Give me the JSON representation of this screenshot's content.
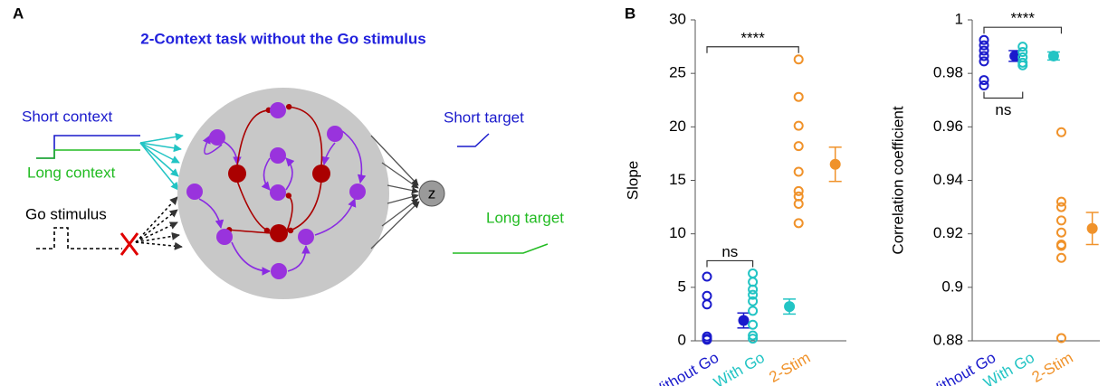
{
  "panels": [
    "A",
    "B"
  ],
  "diagram": {
    "title": "2-Context task without the Go stimulus",
    "inputs": [
      "Short context",
      "Long context",
      "Go stimulus"
    ],
    "output": "z",
    "targets": [
      "Short target",
      "Long target"
    ]
  },
  "chart_data": [
    {
      "type": "strip",
      "ylabel": "Slope",
      "categories": [
        "Without Go",
        "With Go",
        "2-Stim"
      ],
      "colors": [
        "#1a1acc",
        "#22c4c4",
        "#f0922a"
      ],
      "points": [
        [
          6,
          4.2,
          3.4,
          0.4,
          0.2,
          0.1
        ],
        [
          6.3,
          5.5,
          4.8,
          4.3,
          3.7,
          2.8,
          1.5,
          0.5,
          0.2
        ],
        [
          26.3,
          22.8,
          20.1,
          18.2,
          15.8,
          14,
          13.5,
          12.8,
          11
        ]
      ],
      "means": [
        1.9,
        3.2,
        16.5
      ],
      "errors": [
        0.7,
        0.7,
        1.6
      ],
      "ylim": [
        0,
        30
      ],
      "yticks": [
        0,
        5,
        10,
        15,
        20,
        25,
        30
      ],
      "annotations": [
        {
          "text": "ns",
          "groups": [
            0,
            1
          ],
          "side": "above"
        },
        {
          "text": "****",
          "groups": [
            0,
            2
          ],
          "side": "above"
        }
      ]
    },
    {
      "type": "strip",
      "ylabel": "Correlation coefficient",
      "categories": [
        "Without Go",
        "With Go",
        "2-Stim"
      ],
      "colors": [
        "#1a1acc",
        "#22c4c4",
        "#f0922a"
      ],
      "points": [
        [
          0.9925,
          0.9905,
          0.9885,
          0.9865,
          0.9845,
          0.9775,
          0.9755
        ],
        [
          0.99,
          0.988,
          0.986,
          0.984,
          0.983
        ],
        [
          0.958,
          0.932,
          0.93,
          0.925,
          0.9205,
          0.916,
          0.9155,
          0.911,
          0.881
        ]
      ],
      "means": [
        0.9865,
        0.9865,
        0.922
      ],
      "errors": [
        0.002,
        0.0015,
        0.006
      ],
      "ylim": [
        0.88,
        1
      ],
      "yticks": [
        0.88,
        0.9,
        0.92,
        0.94,
        0.96,
        0.98,
        1
      ],
      "annotations": [
        {
          "text": "****",
          "groups": [
            0,
            2
          ],
          "side": "above"
        },
        {
          "text": "ns",
          "groups": [
            0,
            1
          ],
          "side": "below"
        }
      ]
    }
  ]
}
